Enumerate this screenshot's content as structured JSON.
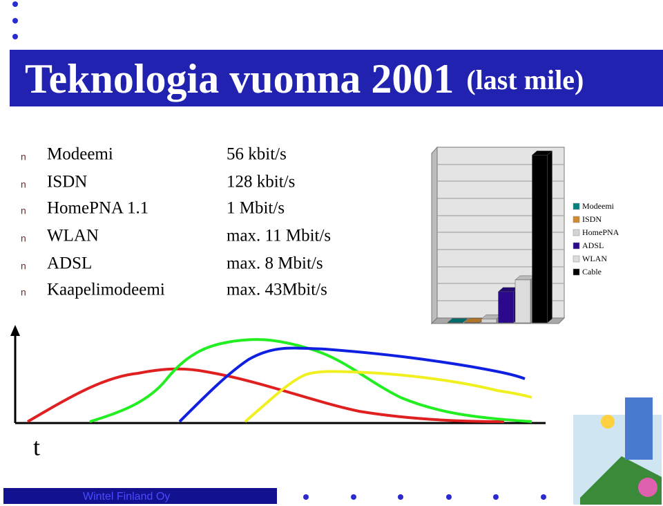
{
  "header": {
    "title": "Teknologia vuonna 2001",
    "subtitle": "(last mile)"
  },
  "bullet": "n",
  "list": [
    {
      "name": "Modeemi",
      "speed": "56 kbit/s"
    },
    {
      "name": "ISDN",
      "speed": "128 kbit/s"
    },
    {
      "name": "HomePNA 1.1",
      "speed": "1 Mbit/s"
    },
    {
      "name": "WLAN",
      "speed": "max. 11 Mbit/s"
    },
    {
      "name": "ADSL",
      "speed": "max. 8 Mbit/s"
    },
    {
      "name": "Kaapelimodeemi",
      "speed": "max. 43Mbit/s"
    }
  ],
  "chart_data": {
    "type": "bar3d",
    "series": [
      {
        "name": "Modeemi",
        "color": "#008080",
        "values": [
          0.056
        ]
      },
      {
        "name": "ISDN",
        "color": "#d08a30",
        "values": [
          0.128
        ]
      },
      {
        "name": "HomePNA",
        "color": "#d4d4d4",
        "values": [
          1
        ]
      },
      {
        "name": "ADSL",
        "color": "#2a0a8a",
        "values": [
          8
        ]
      },
      {
        "name": "WLAN",
        "color": "#dcdcdc",
        "values": [
          11
        ]
      },
      {
        "name": "Cable",
        "color": "#000000",
        "values": [
          43
        ]
      }
    ],
    "ylim": [
      0,
      45
    ],
    "legend": "right"
  },
  "diagram": {
    "axis_label": "t"
  },
  "footer": {
    "company": "Wintel Finland Oy"
  }
}
